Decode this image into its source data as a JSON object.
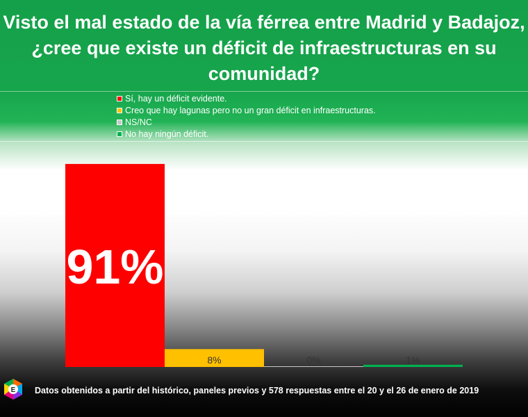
{
  "title": "Visto el mal estado de la vía férrea entre Madrid y Badajoz, ¿cree que existe un déficit de infraestructuras en su comunidad?",
  "footer": "Datos obtenidos a partir del histórico, paneles previos y 578 respuestas entre el 20 y el 26 de enero de 2019",
  "logo_letter": "E",
  "chart_data": {
    "type": "bar",
    "title": "Visto el mal estado de la vía férrea entre Madrid y Badajoz, ¿cree que existe un déficit de infraestructuras en su comunidad?",
    "categories": [
      "Sí, hay un déficit evidente.",
      "Creo que hay lagunas pero no un gran déficit en infraestructuras.",
      "NS/NC",
      "No hay ningún déficit."
    ],
    "values": [
      91,
      8,
      0,
      1
    ],
    "value_labels": [
      "91%",
      "8%",
      "0%",
      "1%"
    ],
    "colors": [
      "#ff0000",
      "#ffc000",
      "#c8c8c8",
      "#00b050"
    ],
    "ylim": [
      0,
      100
    ],
    "unit": "%",
    "grid": false,
    "legend_position": "top-left"
  }
}
